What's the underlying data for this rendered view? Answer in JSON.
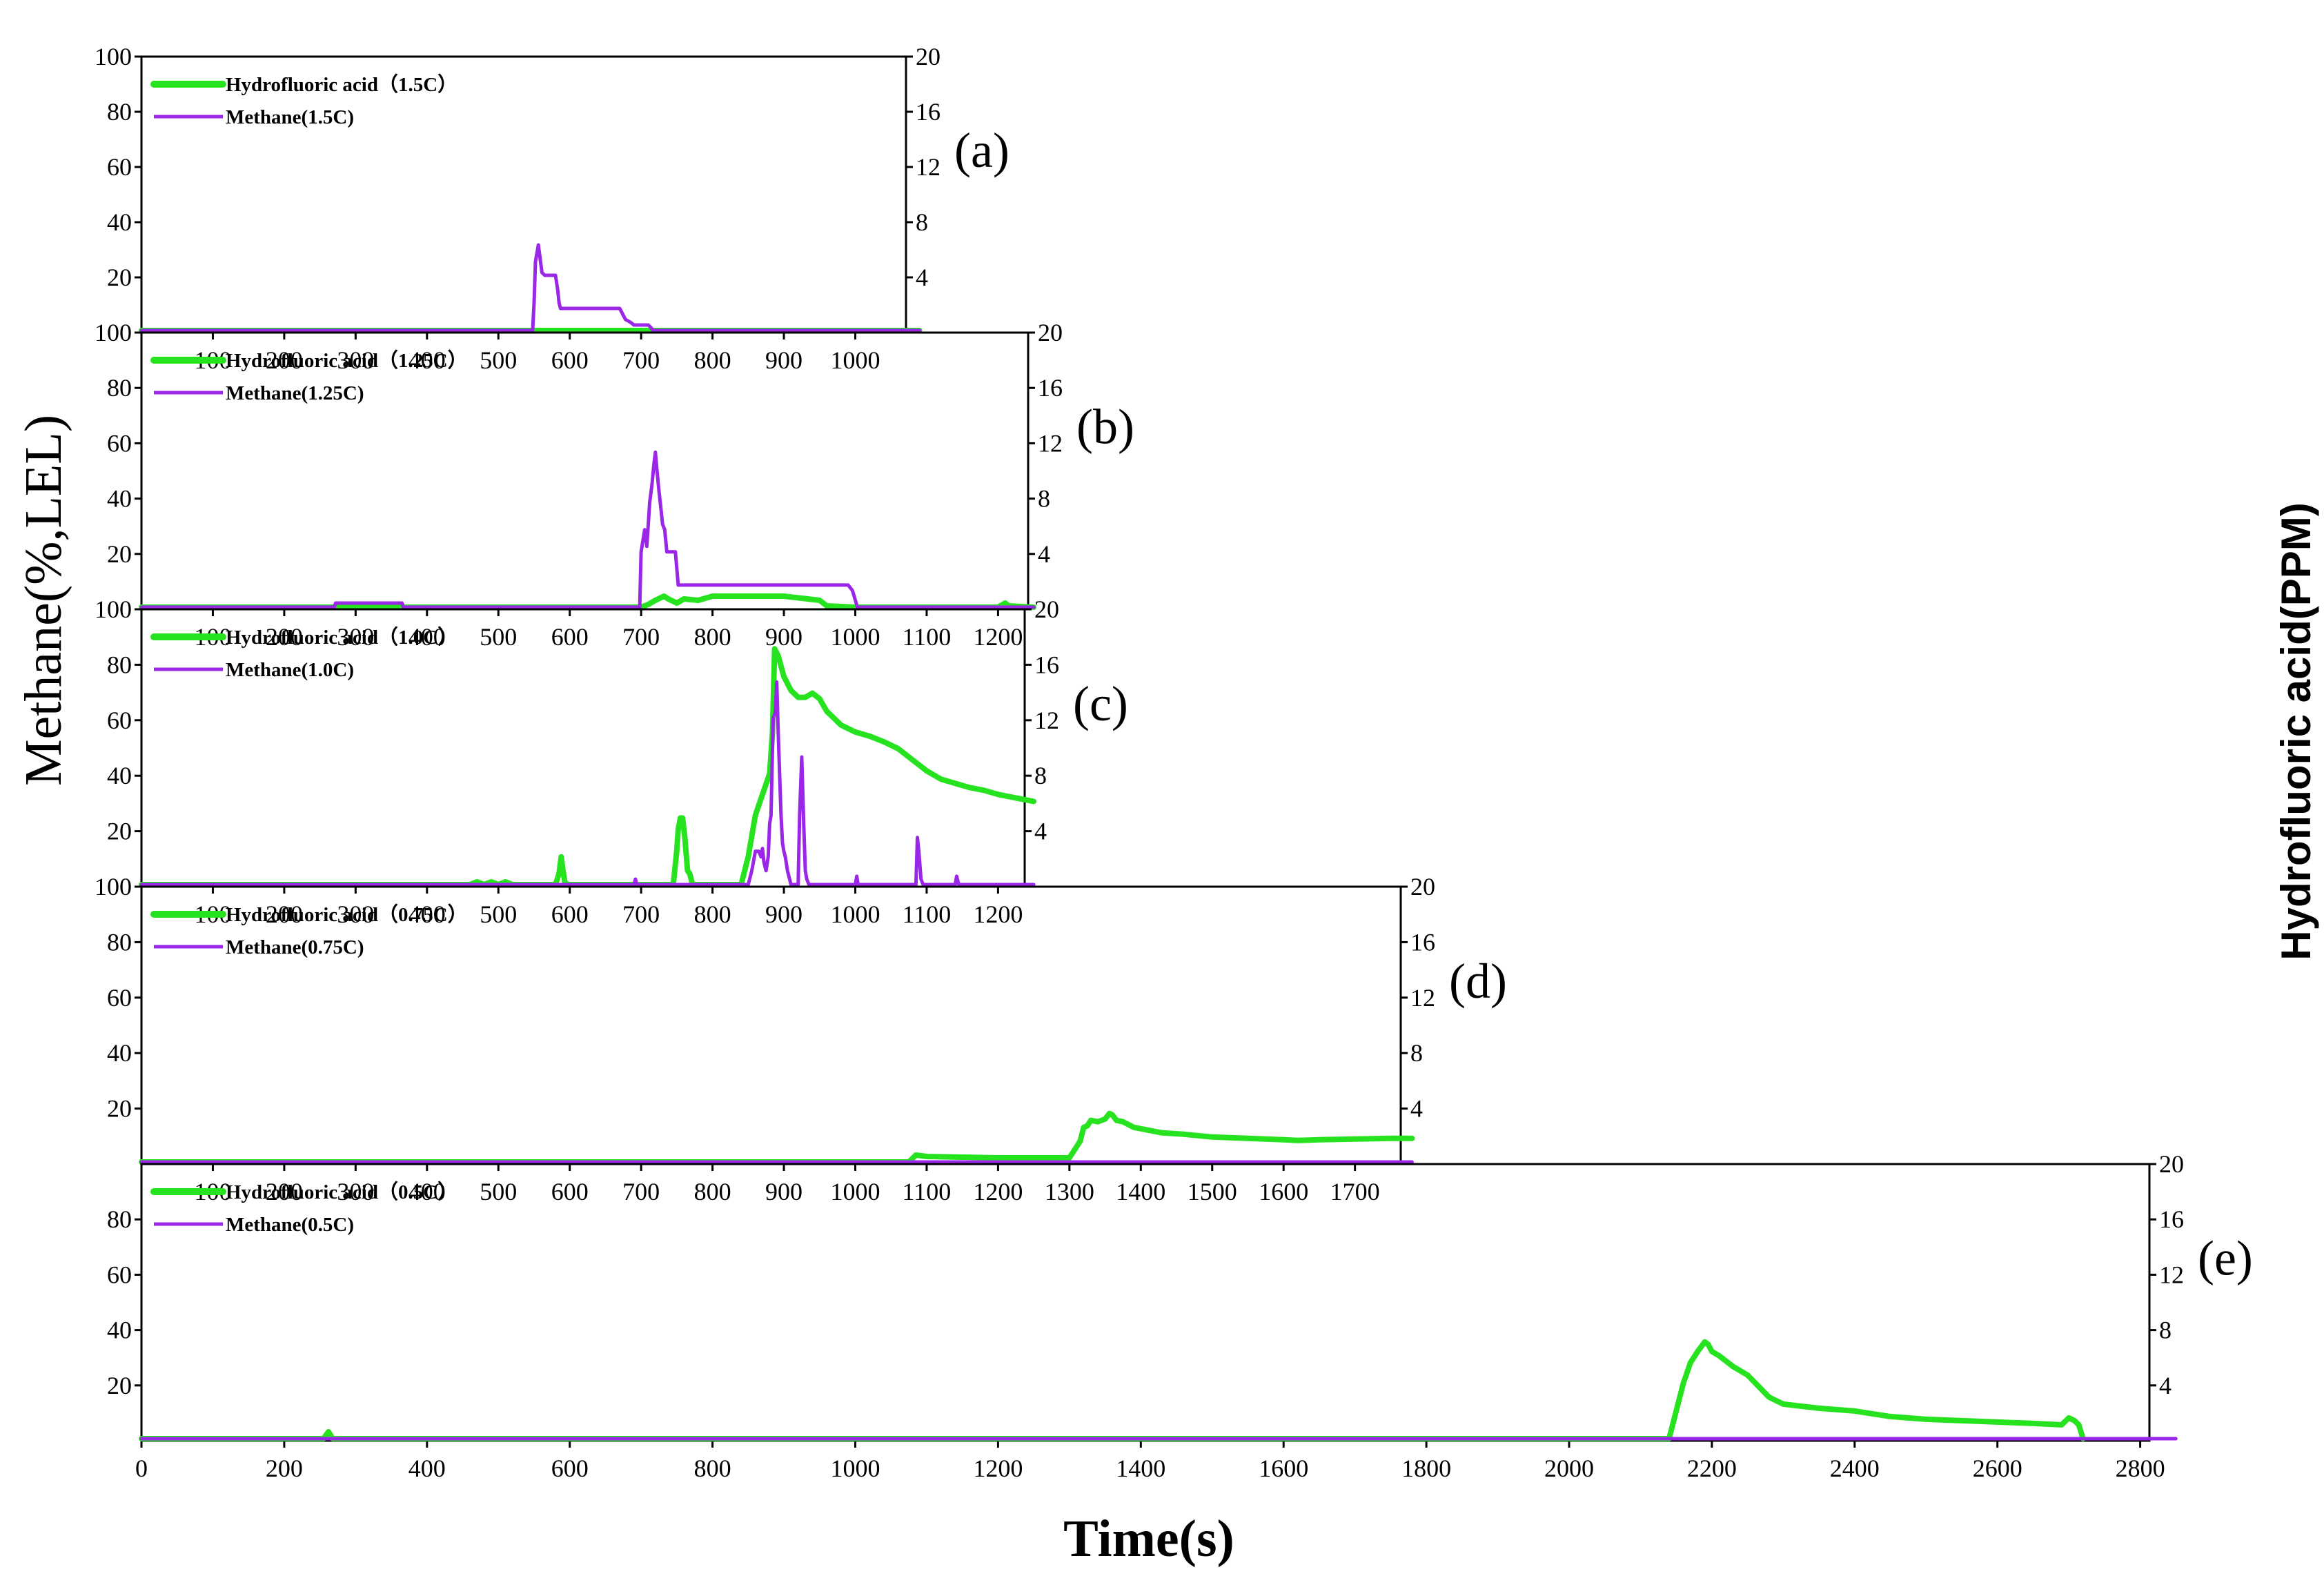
{
  "x_label": "Time(s)",
  "y_label_left": "Methane(%,LEL)",
  "y_label_right": "Hydrofluoric acid(PPM)",
  "colors": {
    "hf": "#27e31f",
    "methane": "#9a26e8",
    "axis": "#000000"
  },
  "chart_data": [
    {
      "type": "line",
      "panel": "(a)",
      "xlim": [
        0,
        1090
      ],
      "xticks": [
        100,
        200,
        300,
        400,
        500,
        600,
        700,
        800,
        900,
        1000
      ],
      "yticks_left": [
        100,
        80,
        60,
        40,
        20
      ],
      "yticks_right": [
        20,
        16,
        12,
        8,
        4
      ],
      "legend": [
        "Hydrofluoric acid（1.5C）",
        "Methane(1.5C)"
      ],
      "series": [
        {
          "name": "Hydrofluoric acid（1.5C）",
          "color_key": "hf",
          "axis": "left",
          "x": [
            0,
            1090
          ],
          "y": [
            0,
            0
          ]
        },
        {
          "name": "Methane(1.5C)",
          "color_key": "methane",
          "axis": "left",
          "x": [
            0,
            548,
            550,
            552,
            556,
            558,
            561,
            565,
            568,
            580,
            583,
            585,
            587,
            667,
            670,
            678,
            685,
            690,
            695,
            700,
            705,
            710,
            714,
            717,
            1090
          ],
          "y": [
            0,
            0,
            10,
            25,
            31,
            27,
            21,
            20,
            20,
            20,
            15,
            10,
            8,
            8,
            8,
            4,
            3,
            2,
            2,
            2,
            2,
            2,
            1,
            0,
            0
          ]
        }
      ]
    },
    {
      "type": "line",
      "panel": "(b)",
      "xlim": [
        0,
        1250
      ],
      "xticks": [
        100,
        200,
        300,
        400,
        500,
        600,
        700,
        800,
        900,
        1000,
        1100,
        1200
      ],
      "yticks_left": [
        100,
        80,
        60,
        40,
        20
      ],
      "yticks_right": [
        20,
        16,
        12,
        8,
        4
      ],
      "legend": [
        "Hydrofluoric acid（1.25C）",
        "Methane(1.25C)"
      ],
      "series": [
        {
          "name": "Hydrofluoric acid（1.25C）",
          "color_key": "hf",
          "axis": "right",
          "x": [
            0,
            700,
            710,
            720,
            732,
            738,
            750,
            760,
            780,
            800,
            900,
            950,
            960,
            1000,
            1200,
            1210,
            1215,
            1250
          ],
          "y": [
            0,
            0,
            0.2,
            0.5,
            0.8,
            0.6,
            0.3,
            0.6,
            0.5,
            0.8,
            0.8,
            0.5,
            0.1,
            0,
            0,
            0.3,
            0.1,
            0
          ]
        },
        {
          "name": "Methane(1.25C)",
          "color_key": "methane",
          "axis": "left",
          "x": [
            0,
            270,
            272,
            365,
            367,
            698,
            700,
            705,
            708,
            710,
            712,
            715,
            718,
            720,
            722,
            725,
            728,
            730,
            733,
            736,
            739,
            742,
            748,
            752,
            758,
            990,
            996,
            1003,
            1250
          ],
          "y": [
            0,
            0,
            1.5,
            1.5,
            0,
            0,
            20,
            28,
            22,
            30,
            38,
            44,
            52,
            56,
            50,
            42,
            35,
            30,
            28,
            20,
            20,
            20,
            20,
            8,
            8,
            8,
            6,
            0,
            0
          ]
        }
      ]
    },
    {
      "type": "line",
      "panel": "(c)",
      "xlim": [
        0,
        1250
      ],
      "xticks": [
        100,
        200,
        300,
        400,
        500,
        600,
        700,
        800,
        900,
        1000,
        1100,
        1200
      ],
      "yticks_left": [
        100,
        80,
        60,
        40,
        20
      ],
      "yticks_right": [
        20,
        16,
        12,
        8,
        4
      ],
      "legend": [
        "Hydrofluoric acid（1.0C）",
        "Methane(1.0C)"
      ],
      "series": [
        {
          "name": "Hydrofluoric acid（1.0C）",
          "color_key": "hf",
          "axis": "right",
          "x": [
            0,
            460,
            470,
            480,
            490,
            500,
            510,
            520,
            580,
            585,
            588,
            590,
            593,
            597,
            603,
            745,
            750,
            752,
            755,
            758,
            761,
            765,
            768,
            771,
            773,
            840,
            845,
            850,
            855,
            860,
            870,
            880,
            884,
            887,
            892,
            900,
            910,
            920,
            930,
            940,
            950,
            960,
            980,
            1000,
            1020,
            1040,
            1060,
            1080,
            1100,
            1120,
            1140,
            1160,
            1180,
            1200,
            1220,
            1250
          ],
          "y": [
            0,
            0,
            0.2,
            0,
            0.2,
            0,
            0.2,
            0,
            0,
            0.8,
            2.0,
            1.2,
            0.2,
            0,
            0,
            0,
            2.5,
            4.0,
            4.8,
            4.8,
            3.5,
            1.0,
            0.8,
            0.2,
            0,
            0,
            1.0,
            2.0,
            3.5,
            5.0,
            6.5,
            8.0,
            11.0,
            17.0,
            16.5,
            15.0,
            14.0,
            13.5,
            13.5,
            13.8,
            13.4,
            12.5,
            11.5,
            11.0,
            10.7,
            10.3,
            9.8,
            9.0,
            8.2,
            7.6,
            7.3,
            7.0,
            6.8,
            6.5,
            6.3,
            6.0
          ]
        },
        {
          "name": "Methane(1.0C)",
          "color_key": "methane",
          "axis": "left",
          "x": [
            0,
            690,
            692,
            694,
            700,
            850,
            855,
            860,
            865,
            868,
            870,
            872,
            875,
            878,
            880,
            882,
            885,
            888,
            890,
            892,
            894,
            896,
            898,
            900,
            902,
            905,
            908,
            910,
            920,
            922,
            925,
            928,
            930,
            932,
            935,
            1000,
            1002,
            1004,
            1085,
            1087,
            1089,
            1092,
            1095,
            1140,
            1142,
            1145,
            1250
          ],
          "y": [
            0,
            0,
            2,
            0,
            0,
            0,
            5,
            12,
            12,
            10,
            13,
            8,
            5,
            10,
            22,
            25,
            60,
            62,
            73,
            55,
            40,
            25,
            15,
            12,
            10,
            5,
            2,
            0,
            0,
            25,
            46,
            20,
            5,
            2,
            0,
            0,
            3,
            0,
            0,
            17,
            12,
            2,
            0,
            0,
            3,
            0,
            0
          ]
        }
      ]
    },
    {
      "type": "line",
      "panel": "(d)",
      "xlim": [
        0,
        1780
      ],
      "xticks": [
        100,
        200,
        300,
        400,
        500,
        600,
        700,
        800,
        900,
        1000,
        1100,
        1200,
        1300,
        1400,
        1500,
        1600,
        1700
      ],
      "yticks_left": [
        100,
        80,
        60,
        40,
        20
      ],
      "yticks_right": [
        20,
        16,
        12,
        8,
        4
      ],
      "legend": [
        "Hydrofluoric acid（0.75C）",
        "Methane(0.75C)"
      ],
      "series": [
        {
          "name": "Hydrofluoric acid（0.75C）",
          "color_key": "hf",
          "axis": "right",
          "x": [
            0,
            1075,
            1085,
            1100,
            1200,
            1300,
            1315,
            1320,
            1325,
            1330,
            1340,
            1350,
            1356,
            1360,
            1366,
            1375,
            1390,
            1410,
            1430,
            1460,
            1500,
            1550,
            1600,
            1620,
            1650,
            1700,
            1750,
            1780
          ],
          "y": [
            0,
            0,
            0.5,
            0.4,
            0.3,
            0.3,
            1.5,
            2.5,
            2.6,
            3.0,
            2.9,
            3.1,
            3.5,
            3.4,
            3.0,
            2.9,
            2.5,
            2.3,
            2.1,
            2.0,
            1.8,
            1.7,
            1.6,
            1.55,
            1.6,
            1.65,
            1.7,
            1.7
          ]
        },
        {
          "name": "Methane(0.75C)",
          "color_key": "methane",
          "axis": "left",
          "x": [
            0,
            1780
          ],
          "y": [
            0,
            0
          ]
        }
      ]
    },
    {
      "type": "line",
      "panel": "(e)",
      "xlim": [
        0,
        2850
      ],
      "xticks": [
        0,
        200,
        400,
        600,
        800,
        1000,
        1200,
        1400,
        1600,
        1800,
        2000,
        2200,
        2400,
        2600,
        2800
      ],
      "yticks_left": [
        80,
        60,
        40,
        20
      ],
      "yticks_right": [
        20,
        16,
        12,
        8,
        4
      ],
      "legend": [
        "Hydrofluoric acid（0.5C）",
        "Methane(0.5C)"
      ],
      "series": [
        {
          "name": "Hydrofluoric acid（0.5C）",
          "color_key": "hf",
          "axis": "right",
          "x": [
            0,
            255,
            262,
            268,
            2140,
            2150,
            2160,
            2170,
            2180,
            2190,
            2195,
            2200,
            2210,
            2230,
            2250,
            2280,
            2300,
            2350,
            2400,
            2450,
            2500,
            2550,
            2600,
            2650,
            2690,
            2700,
            2708,
            2714,
            2720
          ],
          "y": [
            0,
            0,
            0.5,
            0,
            0,
            2.0,
            4.0,
            5.5,
            6.3,
            7.0,
            6.8,
            6.3,
            6.0,
            5.2,
            4.6,
            3.0,
            2.5,
            2.2,
            2.0,
            1.6,
            1.4,
            1.3,
            1.2,
            1.1,
            1.0,
            1.5,
            1.3,
            1.0,
            0
          ]
        },
        {
          "name": "Methane(0.5C)",
          "color_key": "methane",
          "axis": "left",
          "x": [
            0,
            2850
          ],
          "y": [
            0,
            0
          ]
        }
      ]
    }
  ]
}
